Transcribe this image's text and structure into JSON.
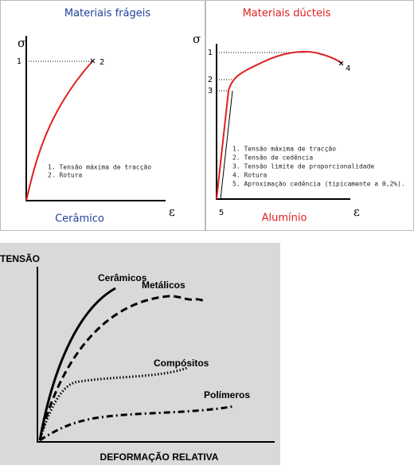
{
  "panels": [
    {
      "title": "Materiais frágeis",
      "y_symbol": "σ",
      "x_symbol": "ε",
      "caption": "Cerâmico",
      "point_labels": [
        "1",
        "2"
      ],
      "legend": [
        "1. Tensão máxima de tracção",
        "2. Rotura"
      ]
    },
    {
      "title": "Materiais dúcteis",
      "y_symbol": "σ",
      "x_symbol": "ε",
      "caption": "Alumínio",
      "point_labels": [
        "1",
        "2",
        "3",
        "4",
        "5"
      ],
      "legend": [
        "1. Tensão máxima de tracção",
        "2. Tensão de cedência",
        "3. Tensão limite de proporcionalidade",
        "4. Rotura",
        "5. Aproximação cedência (tipicamente a 0,2%)."
      ]
    }
  ],
  "comparison": {
    "y_label": "TENSÃO",
    "x_label": "DEFORMAÇÃO RELATIVA",
    "curves": [
      "Cerâmicos",
      "Metálicos",
      "Compósitos",
      "Polímeros"
    ]
  }
}
